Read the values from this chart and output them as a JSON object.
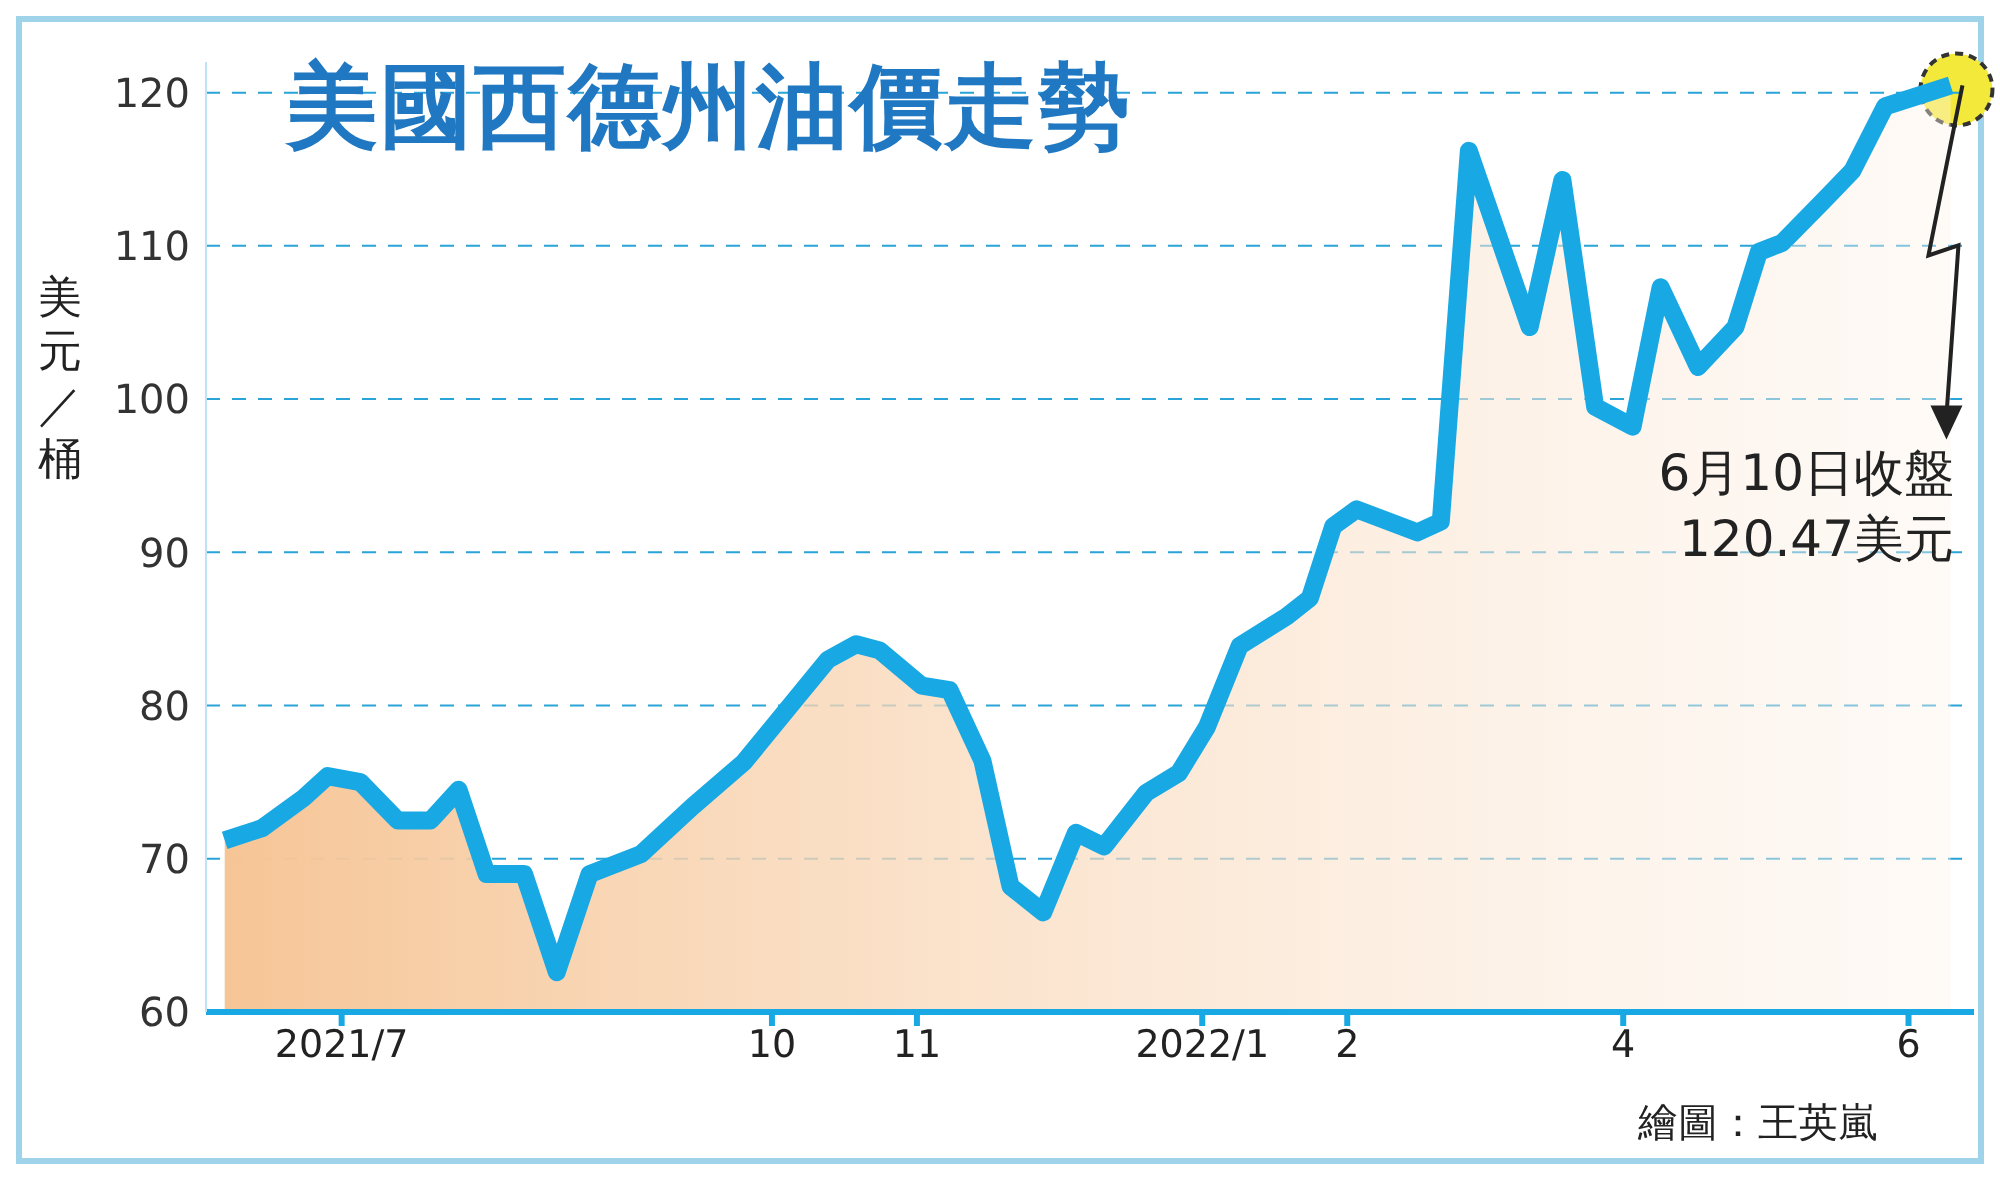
{
  "chart_data": {
    "type": "area",
    "title": "美國西德州油價走勢",
    "ylabel": "美元／桶",
    "x": [
      "2021-06-06",
      "2021-06-14",
      "2021-06-23",
      "2021-06-28",
      "2021-07-05",
      "2021-07-13",
      "2021-07-20",
      "2021-07-26",
      "2021-08-01",
      "2021-08-09",
      "2021-08-16",
      "2021-08-23",
      "2021-09-03",
      "2021-09-14",
      "2021-09-25",
      "2021-10-06",
      "2021-10-13",
      "2021-10-19",
      "2021-10-24",
      "2021-11-02",
      "2021-11-08",
      "2021-11-15",
      "2021-11-21",
      "2021-11-28",
      "2021-12-05",
      "2021-12-11",
      "2021-12-20",
      "2021-12-27",
      "2022-01-02",
      "2022-01-09",
      "2022-01-19",
      "2022-01-24",
      "2022-01-29",
      "2022-02-03",
      "2022-02-16",
      "2022-02-21",
      "2022-02-27",
      "2022-03-12",
      "2022-03-19",
      "2022-03-26",
      "2022-04-03",
      "2022-04-09",
      "2022-04-17",
      "2022-04-25",
      "2022-04-30",
      "2022-05-05",
      "2022-05-14",
      "2022-05-20",
      "2022-05-27",
      "2022-06-10"
    ],
    "series": [
      {
        "color": "#18a8e4",
        "values": [
          71.2,
          72,
          74,
          75.4,
          75,
          72.5,
          72.5,
          74.5,
          69,
          69,
          62.6,
          69,
          70.3,
          73.4,
          76.3,
          80.4,
          83,
          84,
          83.6,
          81.3,
          81,
          76.4,
          68.2,
          66.5,
          71.7,
          70.8,
          74.3,
          75.6,
          78.6,
          83.9,
          85.8,
          87,
          91.7,
          92.8,
          91.3,
          92,
          116.2,
          104.7,
          114.3,
          99.5,
          98.2,
          107.3,
          102.1,
          104.7,
          109.6,
          110.2,
          113,
          114.9,
          119.1,
          120.47
        ]
      }
    ],
    "xlim": [
      "2021-06-02",
      "2022-06-15"
    ],
    "xticks": [
      {
        "value": "2021-07-01",
        "label": "2021/7"
      },
      {
        "value": "2021-10-01",
        "label": "10"
      },
      {
        "value": "2021-11-01",
        "label": "11"
      },
      {
        "value": "2022-01-01",
        "label": "2022/1"
      },
      {
        "value": "2022-02-01",
        "label": "2"
      },
      {
        "value": "2022-04-01",
        "label": "4"
      },
      {
        "value": "2022-06-01",
        "label": "6"
      }
    ],
    "ylim": [
      60,
      122
    ],
    "yticks": [
      60,
      70,
      80,
      90,
      100,
      110,
      120
    ],
    "grid": "y",
    "line_style": "solid",
    "marker": "none",
    "annotations": [
      {
        "text": "6月10日收盤\n120.47美元",
        "x": "2022-06-10",
        "y": 120.47
      },
      "繪圖：王英嵐"
    ]
  }
}
